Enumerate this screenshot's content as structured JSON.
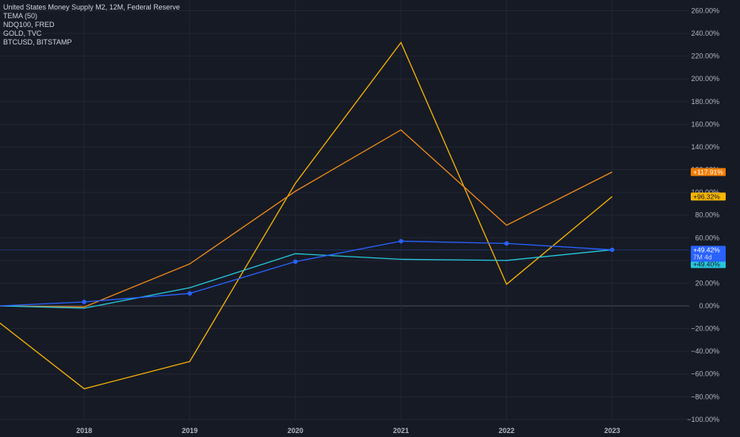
{
  "legend": {
    "items": [
      "United States Money Supply M2, 12M, Federal Reserve",
      "TEMA (50)",
      "NDQ100, FRED",
      "GOLD, TVC",
      "BTCUSD, BITSTAMP"
    ]
  },
  "colors": {
    "background": "#161a25",
    "grid": "#232633",
    "zero_line": "#4a4e5a",
    "axis_text": "#b2b5be"
  },
  "chart_data": {
    "type": "line",
    "x_ticks": [
      "2018",
      "2019",
      "2020",
      "2021",
      "2022",
      "2023"
    ],
    "y_ticks": [
      "260.00%",
      "240.00%",
      "220.00%",
      "200.00%",
      "180.00%",
      "160.00%",
      "140.00%",
      "120.00%",
      "100.00%",
      "80.00%",
      "60.00%",
      "40.00%",
      "20.00%",
      "0.00%",
      "−20.00%",
      "−40.00%",
      "−60.00%",
      "−80.00%",
      "−100.00%"
    ],
    "ylim": [
      -100,
      260
    ],
    "x_range": [
      2017.2,
      2023.9
    ],
    "series": [
      {
        "color": "#f7b500",
        "x": [
          2017.2,
          2018,
          2019,
          2020,
          2021,
          2022,
          2023
        ],
        "y": [
          -15,
          -73,
          -49,
          108,
          232,
          19,
          96.32
        ],
        "label": "+96.32%",
        "label_color": "#f7b500",
        "label_text_color": "#131722"
      },
      {
        "color": "#f08c18",
        "x": [
          2017.2,
          2018,
          2019,
          2020,
          2021,
          2022,
          2023
        ],
        "y": [
          0,
          -1,
          37,
          101,
          155,
          71,
          117.91
        ],
        "label": "+117.91%",
        "label_color": "#f57c00",
        "label_text_color": "#ffffff"
      },
      {
        "color": "#26c6da",
        "x": [
          2017.2,
          2018,
          2019,
          2020,
          2021,
          2022,
          2023
        ],
        "y": [
          0,
          -2,
          16,
          46,
          41,
          40,
          49.4
        ],
        "label": "+49.40%",
        "label_color": "#26c6da",
        "label_text_color": "#131722"
      },
      {
        "color": "#2962ff",
        "x": [
          2017.2,
          2018,
          2019,
          2020,
          2021,
          2022,
          2023
        ],
        "y": [
          0,
          3.5,
          11,
          39,
          57,
          55,
          49.42
        ],
        "markers": true,
        "label": "+49.42%",
        "sublabel": "7M 4d",
        "label_color": "#2962ff",
        "label_text_color": "#ffffff"
      }
    ]
  }
}
